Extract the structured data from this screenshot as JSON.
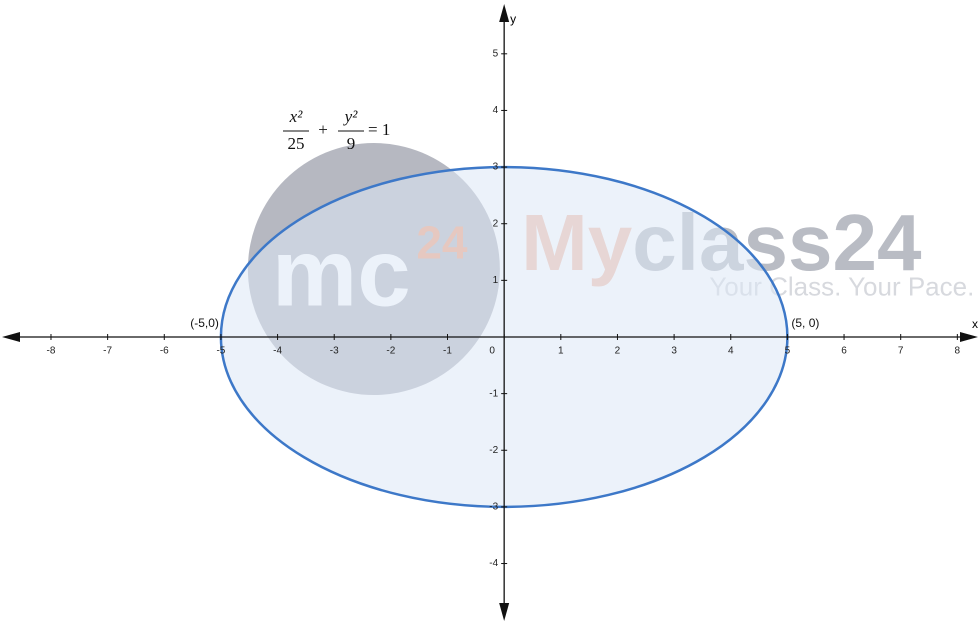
{
  "chart_data": {
    "type": "ellipse",
    "equation": {
      "terms": [
        {
          "numerator": "x²",
          "denominator": "25"
        },
        {
          "numerator": "y²",
          "denominator": "9"
        }
      ],
      "operator": "+",
      "equals": "= 1"
    },
    "ellipse": {
      "a": 5,
      "b": 3,
      "color": "#3d78c8",
      "fill": "#dce8f6"
    },
    "points": [
      {
        "x": -5,
        "y": 0,
        "label": "(-5,0)"
      },
      {
        "x": 5,
        "y": 0,
        "label": "(5, 0)"
      }
    ],
    "x_label": "x",
    "y_label": "y",
    "xlim": [
      -8.9,
      8.4
    ],
    "ylim": [
      -5.05,
      5.95
    ],
    "xticks": [
      -8,
      -7,
      -6,
      -5,
      -4,
      -3,
      -2,
      -1,
      0,
      1,
      2,
      3,
      4,
      5,
      6,
      7,
      8
    ],
    "yticks": [
      -4,
      -3,
      -2,
      -1,
      1,
      2,
      3,
      4,
      5
    ],
    "watermark": {
      "logo": "mc",
      "logo_sup": "24",
      "brand": [
        "My",
        "class24"
      ],
      "tagline": "Your Class. Your Pace."
    }
  }
}
